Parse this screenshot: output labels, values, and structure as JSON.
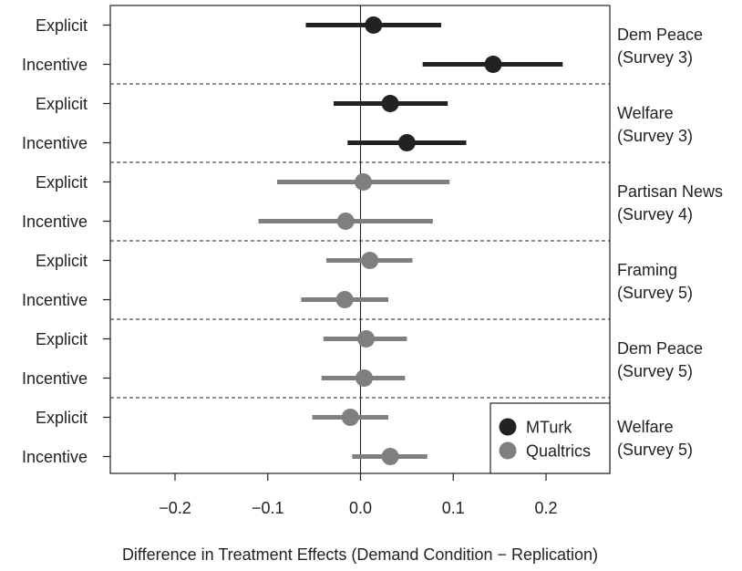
{
  "chart_data": {
    "type": "scatter",
    "subtype": "dot-and-whisker",
    "title": "",
    "xlabel": "Difference in Treatment Effects (Demand Condition − Replication)",
    "ylabel": "",
    "xlim": [
      -0.27,
      0.27
    ],
    "xticks": [
      -0.2,
      -0.1,
      0.0,
      0.1,
      0.2
    ],
    "xtick_labels": [
      "−0.2",
      "−0.1",
      "0.0",
      "0.1",
      "0.2"
    ],
    "reference_line_x": 0.0,
    "grid": false,
    "groups": [
      {
        "label_line1": "Dem Peace",
        "label_line2": "(Survey 3)"
      },
      {
        "label_line1": "Welfare",
        "label_line2": "(Survey 3)"
      },
      {
        "label_line1": "Partisan News",
        "label_line2": "(Survey 4)"
      },
      {
        "label_line1": "Framing",
        "label_line2": "(Survey 5)"
      },
      {
        "label_line1": "Dem Peace",
        "label_line2": "(Survey 5)"
      },
      {
        "label_line1": "Welfare",
        "label_line2": "(Survey 5)"
      }
    ],
    "rows": [
      {
        "label": "Explicit",
        "group": 0,
        "series": "MTurk",
        "estimate": 0.014,
        "ci_low": -0.059,
        "ci_high": 0.087
      },
      {
        "label": "Incentive",
        "group": 0,
        "series": "MTurk",
        "estimate": 0.143,
        "ci_low": 0.067,
        "ci_high": 0.218
      },
      {
        "label": "Explicit",
        "group": 1,
        "series": "MTurk",
        "estimate": 0.032,
        "ci_low": -0.029,
        "ci_high": 0.094
      },
      {
        "label": "Incentive",
        "group": 1,
        "series": "MTurk",
        "estimate": 0.05,
        "ci_low": -0.014,
        "ci_high": 0.114
      },
      {
        "label": "Explicit",
        "group": 2,
        "series": "Qualtrics",
        "estimate": 0.003,
        "ci_low": -0.09,
        "ci_high": 0.096
      },
      {
        "label": "Incentive",
        "group": 2,
        "series": "Qualtrics",
        "estimate": -0.016,
        "ci_low": -0.11,
        "ci_high": 0.078
      },
      {
        "label": "Explicit",
        "group": 3,
        "series": "Qualtrics",
        "estimate": 0.01,
        "ci_low": -0.037,
        "ci_high": 0.056
      },
      {
        "label": "Incentive",
        "group": 3,
        "series": "Qualtrics",
        "estimate": -0.017,
        "ci_low": -0.064,
        "ci_high": 0.03
      },
      {
        "label": "Explicit",
        "group": 4,
        "series": "Qualtrics",
        "estimate": 0.006,
        "ci_low": -0.04,
        "ci_high": 0.05
      },
      {
        "label": "Incentive",
        "group": 4,
        "series": "Qualtrics",
        "estimate": 0.004,
        "ci_low": -0.042,
        "ci_high": 0.048
      },
      {
        "label": "Explicit",
        "group": 5,
        "series": "Qualtrics",
        "estimate": -0.011,
        "ci_low": -0.052,
        "ci_high": 0.03
      },
      {
        "label": "Incentive",
        "group": 5,
        "series": "Qualtrics",
        "estimate": 0.032,
        "ci_low": -0.009,
        "ci_high": 0.072
      }
    ],
    "legend": {
      "placement": "bottom-right",
      "entries": [
        {
          "name": "MTurk",
          "color": "#222222"
        },
        {
          "name": "Qualtrics",
          "color": "#7f7f7f"
        }
      ]
    }
  }
}
